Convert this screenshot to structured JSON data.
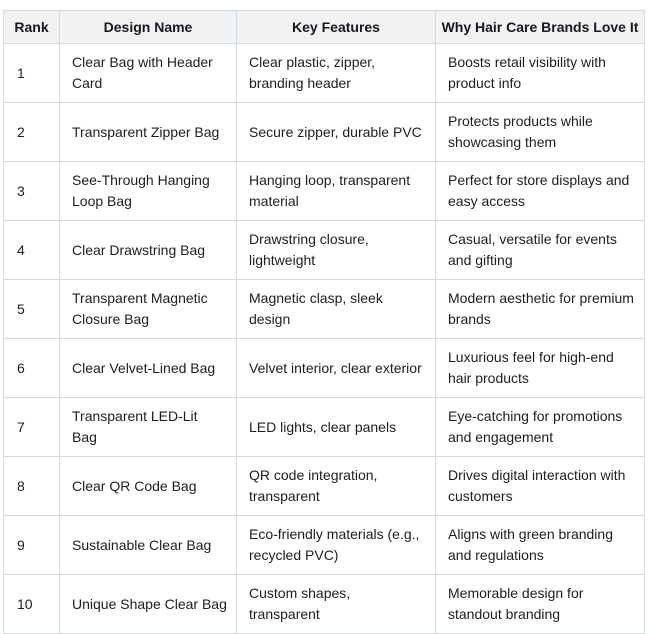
{
  "colors": {
    "header_bg": "#f0f2f3",
    "border": "#d4dbe0",
    "text": "#1c1e21",
    "background": "#ffffff"
  },
  "table": {
    "columns": [
      "Rank",
      "Design Name",
      "Key Features",
      "Why Hair Care Brands Love It"
    ],
    "rows": [
      {
        "rank": "1",
        "design": "Clear Bag with Header\nCard",
        "features": "Clear plastic, zipper,\nbranding header",
        "why": "Boosts retail visibility with\nproduct info"
      },
      {
        "rank": "2",
        "design": "Transparent Zipper Bag",
        "features": "Secure zipper, durable PVC",
        "why": "Protects products while\nshowcasing them"
      },
      {
        "rank": "3",
        "design": "See-Through Hanging\nLoop Bag",
        "features": "Hanging loop, transparent\nmaterial",
        "why": "Perfect for store displays and\neasy access"
      },
      {
        "rank": "4",
        "design": "Clear Drawstring Bag",
        "features": "Drawstring closure,\nlightweight",
        "why": "Casual, versatile for events\nand gifting"
      },
      {
        "rank": "5",
        "design": "Transparent Magnetic\nClosure Bag",
        "features": "Magnetic clasp, sleek\ndesign",
        "why": "Modern aesthetic for premium\nbrands"
      },
      {
        "rank": "6",
        "design": "Clear Velvet-Lined Bag",
        "features": "Velvet interior, clear exterior",
        "why": "Luxurious feel for high-end\nhair products"
      },
      {
        "rank": "7",
        "design": "Transparent LED-Lit\nBag",
        "features": "LED lights, clear panels",
        "why": "Eye-catching for promotions\nand engagement"
      },
      {
        "rank": "8",
        "design": "Clear QR Code Bag",
        "features": "QR code integration,\ntransparent",
        "why": "Drives digital interaction with\ncustomers"
      },
      {
        "rank": "9",
        "design": "Sustainable Clear Bag",
        "features": "Eco-friendly materials (e.g.,\nrecycled PVC)",
        "why": "Aligns with green branding\nand regulations"
      },
      {
        "rank": "10",
        "design": "Unique Shape Clear Bag",
        "features": "Custom shapes,\ntransparent",
        "why": "Memorable design for\nstandout branding"
      }
    ]
  }
}
